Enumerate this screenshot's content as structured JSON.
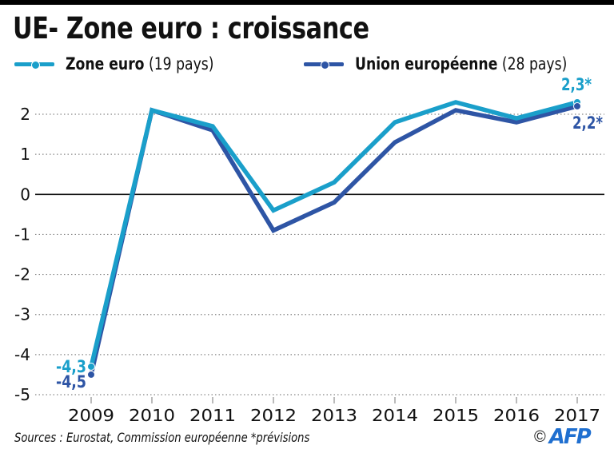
{
  "header": {
    "title": "UE- Zone euro : croissance"
  },
  "legend": [
    {
      "name_bold": "Zone euro",
      "name_light": " (19 pays)",
      "color": "#1a9fca"
    },
    {
      "name_bold": "Union européenne",
      "name_light": " (28 pays)",
      "color": "#2e55a5"
    }
  ],
  "footer": {
    "sources": "Sources : Eurostat, Commission européenne  *prévisions",
    "copyright_symbol": "©",
    "agency_logo": "AFP"
  },
  "chart_data": {
    "type": "line",
    "title": "UE- Zone euro : croissance",
    "xlabel": "",
    "ylabel": "",
    "x": [
      "2009",
      "2010",
      "2011",
      "2012",
      "2013",
      "2014",
      "2015",
      "2016",
      "2017"
    ],
    "ylim": [
      -5,
      2
    ],
    "yticks": [
      2,
      1,
      0,
      -1,
      -2,
      -3,
      -4,
      -5
    ],
    "ytick_labels": [
      "2",
      "1",
      "0",
      "-1",
      "-2",
      "-3",
      "-4",
      "-5"
    ],
    "grid": "horizontal dotted",
    "legend_position": "top",
    "series": [
      {
        "name": "Zone euro (19 pays)",
        "color": "#1a9fca",
        "values": [
          -4.3,
          2.1,
          1.7,
          -0.4,
          0.3,
          1.8,
          2.3,
          1.9,
          2.3
        ],
        "labels": [
          {
            "index": 0,
            "text": "-4,3"
          },
          {
            "index": 8,
            "text": "2,3*"
          }
        ]
      },
      {
        "name": "Union européenne (28 pays)",
        "color": "#2e55a5",
        "values": [
          -4.5,
          2.1,
          1.6,
          -0.9,
          -0.2,
          1.3,
          2.1,
          1.8,
          2.2
        ],
        "labels": [
          {
            "index": 0,
            "text": "-4,5"
          },
          {
            "index": 8,
            "text": "2,2*"
          }
        ]
      }
    ],
    "annotations": [
      "* prévisions"
    ]
  }
}
